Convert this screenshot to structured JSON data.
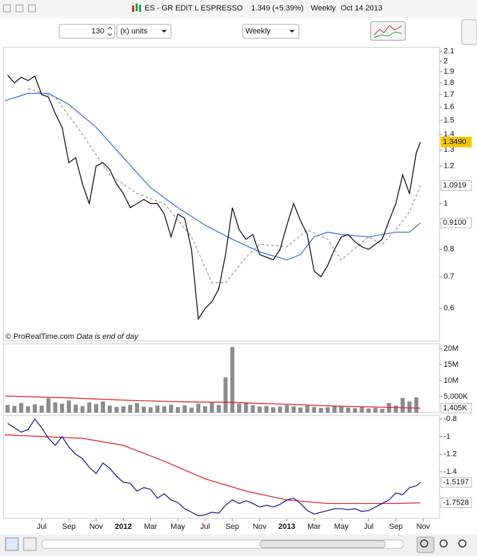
{
  "toolbar": {
    "instrument": "ES - GR EDIT L ESPRESSO",
    "quote": "1.349 (+5.39%)",
    "period": "Weekly",
    "date": "Oct 14 2013"
  },
  "controls": {
    "units_count": "130",
    "units": "(x) units",
    "timeframe": "Weekly"
  },
  "footer": {
    "credit": "© ProRealTime.com",
    "note": "Data is end of day"
  },
  "chart_data": [
    {
      "type": "line",
      "yscale": "log",
      "xlim": [
        3.2,
        35.2
      ],
      "ylim": [
        0.512,
        2.14
      ],
      "yticks": [
        2.1,
        2,
        1.9,
        1.8,
        1.7,
        1.6,
        1.5,
        1.4,
        1.3,
        1.2,
        1,
        0.8,
        0.7,
        0.6
      ],
      "series": [
        {
          "color": "#3a6ee8",
          "x": [
            3.3,
            5,
            6.5,
            8,
            10,
            12,
            14,
            16,
            18,
            20,
            22,
            24,
            25,
            26,
            27,
            28,
            30,
            31,
            32,
            33,
            33.8
          ],
          "values": [
            1.65,
            1.71,
            1.71,
            1.62,
            1.45,
            1.25,
            1.08,
            0.98,
            0.9,
            0.84,
            0.79,
            0.76,
            0.78,
            0.85,
            0.87,
            0.86,
            0.85,
            0.86,
            0.87,
            0.87,
            0.91
          ],
          "last_label": "0.9100"
        },
        {
          "color": "#999999",
          "dash": true,
          "x": [
            5,
            7,
            9,
            11,
            13,
            15,
            17,
            18.5,
            19.5,
            21,
            22,
            24,
            25.5,
            27,
            28,
            30,
            31,
            32,
            33,
            33.8
          ],
          "values": [
            1.75,
            1.68,
            1.4,
            1.15,
            1.05,
            1,
            0.85,
            0.68,
            0.68,
            0.77,
            0.82,
            0.81,
            0.88,
            0.84,
            0.76,
            0.85,
            0.82,
            0.88,
            0.96,
            1.0919
          ],
          "last_label": "1.0919"
        },
        {
          "color": "#0a0a1e",
          "label_fill": "#f5c400",
          "x": [
            3.5,
            4,
            4.5,
            5,
            5.5,
            6,
            6.5,
            7,
            7.5,
            8,
            8.5,
            9,
            9.5,
            10,
            10.5,
            11,
            11.5,
            12,
            12.5,
            13,
            13.5,
            14,
            14.5,
            15,
            15.5,
            16,
            16.5,
            17,
            17.5,
            18,
            18.5,
            19,
            19.5,
            20,
            20.5,
            21,
            21.5,
            22,
            22.5,
            23,
            23.5,
            24,
            24.5,
            25,
            25.5,
            26,
            26.5,
            27,
            27.5,
            28,
            28.5,
            29,
            29.5,
            30,
            30.5,
            31,
            31.5,
            32,
            32.5,
            33,
            33.5,
            33.8
          ],
          "values": [
            1.87,
            1.8,
            1.85,
            1.82,
            1.86,
            1.7,
            1.68,
            1.55,
            1.45,
            1.22,
            1.25,
            1.1,
            1,
            1.2,
            1.22,
            1.18,
            1.1,
            1.05,
            0.98,
            1,
            1.02,
            1,
            1,
            0.95,
            0.85,
            0.95,
            0.93,
            0.8,
            0.57,
            0.6,
            0.62,
            0.66,
            0.78,
            0.98,
            0.88,
            0.84,
            0.86,
            0.78,
            0.77,
            0.76,
            0.8,
            0.9,
            1,
            0.92,
            0.86,
            0.72,
            0.7,
            0.74,
            0.8,
            0.85,
            0.86,
            0.83,
            0.81,
            0.8,
            0.82,
            0.84,
            0.92,
            1,
            1.15,
            1.05,
            1.28,
            1.349
          ],
          "last_label": "1.3490"
        }
      ]
    },
    {
      "type": "bar",
      "xlim": [
        3.2,
        35.2
      ],
      "ylim": [
        0,
        21500000
      ],
      "yticks": [
        {
          "value": 20000000,
          "label": "20M"
        },
        {
          "value": 15000000,
          "label": "15M"
        },
        {
          "value": 10000000,
          "label": "10M"
        },
        {
          "value": 5000000,
          "label": "5,000K"
        }
      ],
      "series": [
        {
          "type": "bar",
          "color": "#8c8c8c",
          "x": [
            3.5,
            4,
            4.5,
            5,
            5.5,
            6,
            6.5,
            7,
            7.5,
            8,
            8.5,
            9,
            9.5,
            10,
            10.5,
            11,
            11.5,
            12,
            12.5,
            13,
            13.5,
            14,
            14.5,
            15,
            15.5,
            16,
            16.5,
            17,
            17.5,
            18,
            18.5,
            19,
            19.5,
            20,
            20.5,
            21,
            21.5,
            22,
            22.5,
            23,
            23.5,
            24,
            24.5,
            25,
            25.5,
            26,
            26.5,
            27,
            27.5,
            28,
            28.5,
            29,
            29.5,
            30,
            30.5,
            31,
            31.5,
            32,
            32.5,
            33,
            33.5
          ],
          "values": [
            2400000,
            2100000,
            3000000,
            2000000,
            2600000,
            2200000,
            4500000,
            3200000,
            2800000,
            3800000,
            2500000,
            2000000,
            3200000,
            2700000,
            3500000,
            2200000,
            1800000,
            2000000,
            2400000,
            3000000,
            1900000,
            1700000,
            2200000,
            2000000,
            2500000,
            1800000,
            2300000,
            1600000,
            2800000,
            2000000,
            3100000,
            2400000,
            11000000,
            20500000,
            2800000,
            3200000,
            2300000,
            1900000,
            2100000,
            1700000,
            1900000,
            2400000,
            2000000,
            1600000,
            2200000,
            1800000,
            1500000,
            1700000,
            2000000,
            1900000,
            1600000,
            1400000,
            1800000,
            1300000,
            1500000,
            1200000,
            3000000,
            2200000,
            4600000,
            3500000,
            4800000
          ]
        },
        {
          "type": "line",
          "color": "#e02020",
          "x": [
            3.3,
            8,
            12,
            16,
            20,
            24,
            28,
            32,
            33.8
          ],
          "values": [
            5200000,
            4600000,
            3900000,
            3400000,
            3200000,
            2600000,
            2000000,
            1600000,
            1405000
          ],
          "last_label": "1,405K"
        }
      ]
    },
    {
      "type": "line",
      "xlim": [
        3.2,
        35.2
      ],
      "ylim": [
        -1.93,
        -0.76
      ],
      "yticks": [
        -0.8,
        -1,
        -1.2,
        -1.4
      ],
      "xticks": [
        {
          "value": 6,
          "label": "Jul"
        },
        {
          "value": 8,
          "label": "Sep"
        },
        {
          "value": 10,
          "label": "Nov"
        },
        {
          "value": 12,
          "label": "2012"
        },
        {
          "value": 14,
          "label": "Mar"
        },
        {
          "value": 16,
          "label": "May"
        },
        {
          "value": 18,
          "label": "Jul"
        },
        {
          "value": 20,
          "label": "Sep"
        },
        {
          "value": 22,
          "label": "Nov"
        },
        {
          "value": 24,
          "label": "2013"
        },
        {
          "value": 26,
          "label": "Mar"
        },
        {
          "value": 28,
          "label": "May"
        },
        {
          "value": 30,
          "label": "Jul"
        },
        {
          "value": 32,
          "label": "Sep"
        },
        {
          "value": 34,
          "label": "Nov"
        }
      ],
      "series": [
        {
          "color": "#e02020",
          "x": [
            3.3,
            6,
            9,
            12,
            15,
            18,
            21,
            24,
            27,
            30,
            32,
            33.8
          ],
          "values": [
            -0.98,
            -1,
            -1.02,
            -1.1,
            -1.28,
            -1.48,
            -1.62,
            -1.72,
            -1.76,
            -1.76,
            -1.76,
            -1.7528
          ],
          "last_label": "-1.7528"
        },
        {
          "color": "#1a1a9a",
          "x": [
            3.5,
            4,
            4.5,
            5,
            5.5,
            6,
            6.5,
            7,
            7.5,
            8,
            8.5,
            9,
            9.5,
            10,
            10.5,
            11,
            11.5,
            12,
            12.5,
            13,
            13.5,
            14,
            14.5,
            15,
            15.5,
            16,
            16.5,
            17,
            17.5,
            18,
            18.5,
            19,
            19.5,
            20,
            20.5,
            21,
            21.5,
            22,
            22.5,
            23,
            23.5,
            24,
            24.5,
            25,
            25.5,
            26,
            26.5,
            27,
            27.5,
            28,
            28.5,
            29,
            29.5,
            30,
            30.5,
            31,
            31.5,
            32,
            32.5,
            33,
            33.5,
            33.8
          ],
          "values": [
            -0.85,
            -0.9,
            -0.95,
            -0.92,
            -0.8,
            -0.9,
            -1.02,
            -1.1,
            -1,
            -1.12,
            -1.2,
            -1.25,
            -1.35,
            -1.42,
            -1.3,
            -1.36,
            -1.45,
            -1.52,
            -1.53,
            -1.62,
            -1.58,
            -1.6,
            -1.7,
            -1.65,
            -1.72,
            -1.75,
            -1.82,
            -1.86,
            -1.9,
            -1.89,
            -1.86,
            -1.87,
            -1.78,
            -1.72,
            -1.76,
            -1.73,
            -1.76,
            -1.8,
            -1.78,
            -1.8,
            -1.77,
            -1.72,
            -1.7,
            -1.76,
            -1.84,
            -1.88,
            -1.86,
            -1.84,
            -1.82,
            -1.82,
            -1.83,
            -1.82,
            -1.85,
            -1.84,
            -1.8,
            -1.76,
            -1.72,
            -1.64,
            -1.66,
            -1.58,
            -1.56,
            -1.5197
          ],
          "last_label": "-1.5197"
        }
      ]
    }
  ]
}
